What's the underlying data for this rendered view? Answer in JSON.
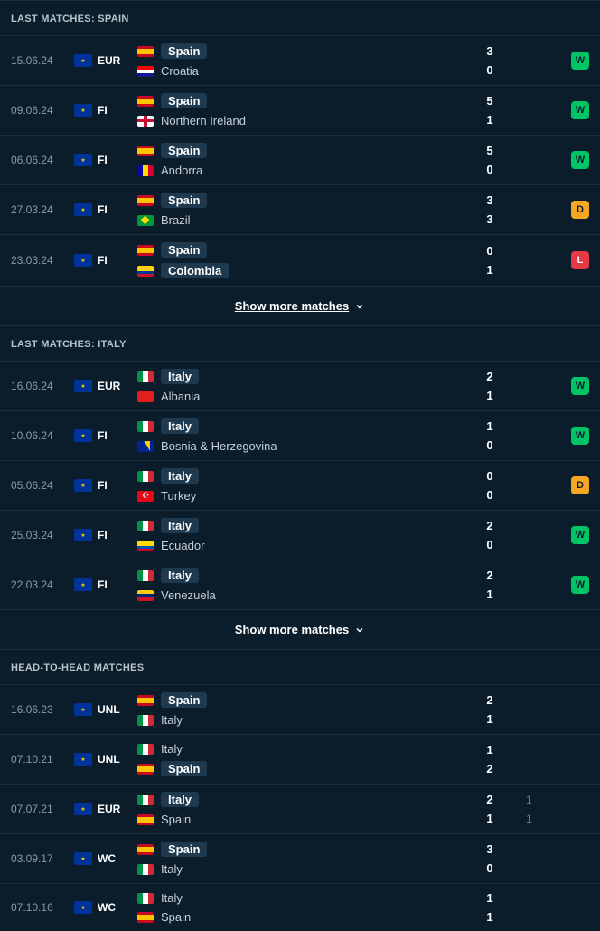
{
  "sections": [
    {
      "title": "LAST MATCHES: SPAIN",
      "show_more": "Show more matches",
      "matches": [
        {
          "date": "15.06.24",
          "comp": "EUR",
          "team1": {
            "name": "Spain",
            "flag": "spain",
            "hl": true
          },
          "team2": {
            "name": "Croatia",
            "flag": "croatia",
            "hl": false
          },
          "s1": "3",
          "s2": "0",
          "sub1": "",
          "sub2": "",
          "result": "W"
        },
        {
          "date": "09.06.24",
          "comp": "FI",
          "team1": {
            "name": "Spain",
            "flag": "spain",
            "hl": true
          },
          "team2": {
            "name": "Northern Ireland",
            "flag": "nireland",
            "hl": false
          },
          "s1": "5",
          "s2": "1",
          "sub1": "",
          "sub2": "",
          "result": "W"
        },
        {
          "date": "06.06.24",
          "comp": "FI",
          "team1": {
            "name": "Spain",
            "flag": "spain",
            "hl": true
          },
          "team2": {
            "name": "Andorra",
            "flag": "andorra",
            "hl": false
          },
          "s1": "5",
          "s2": "0",
          "sub1": "",
          "sub2": "",
          "result": "W"
        },
        {
          "date": "27.03.24",
          "comp": "FI",
          "team1": {
            "name": "Spain",
            "flag": "spain",
            "hl": true
          },
          "team2": {
            "name": "Brazil",
            "flag": "brazil",
            "hl": false
          },
          "s1": "3",
          "s2": "3",
          "sub1": "",
          "sub2": "",
          "result": "D"
        },
        {
          "date": "23.03.24",
          "comp": "FI",
          "team1": {
            "name": "Spain",
            "flag": "spain",
            "hl": true
          },
          "team2": {
            "name": "Colombia",
            "flag": "colombia",
            "hl": true
          },
          "s1": "0",
          "s2": "1",
          "sub1": "",
          "sub2": "",
          "result": "L"
        }
      ]
    },
    {
      "title": "LAST MATCHES: ITALY",
      "show_more": "Show more matches",
      "matches": [
        {
          "date": "16.06.24",
          "comp": "EUR",
          "team1": {
            "name": "Italy",
            "flag": "italy",
            "hl": true
          },
          "team2": {
            "name": "Albania",
            "flag": "albania",
            "hl": false
          },
          "s1": "2",
          "s2": "1",
          "sub1": "",
          "sub2": "",
          "result": "W"
        },
        {
          "date": "10.06.24",
          "comp": "FI",
          "team1": {
            "name": "Italy",
            "flag": "italy",
            "hl": true
          },
          "team2": {
            "name": "Bosnia & Herzegovina",
            "flag": "bosnia",
            "hl": false
          },
          "s1": "1",
          "s2": "0",
          "sub1": "",
          "sub2": "",
          "result": "W"
        },
        {
          "date": "05.06.24",
          "comp": "FI",
          "team1": {
            "name": "Italy",
            "flag": "italy",
            "hl": true
          },
          "team2": {
            "name": "Turkey",
            "flag": "turkey",
            "hl": false
          },
          "s1": "0",
          "s2": "0",
          "sub1": "",
          "sub2": "",
          "result": "D"
        },
        {
          "date": "25.03.24",
          "comp": "FI",
          "team1": {
            "name": "Italy",
            "flag": "italy",
            "hl": true
          },
          "team2": {
            "name": "Ecuador",
            "flag": "ecuador",
            "hl": false
          },
          "s1": "2",
          "s2": "0",
          "sub1": "",
          "sub2": "",
          "result": "W"
        },
        {
          "date": "22.03.24",
          "comp": "FI",
          "team1": {
            "name": "Italy",
            "flag": "italy",
            "hl": true
          },
          "team2": {
            "name": "Venezuela",
            "flag": "venezuela",
            "hl": false
          },
          "s1": "2",
          "s2": "1",
          "sub1": "",
          "sub2": "",
          "result": "W"
        }
      ]
    },
    {
      "title": "HEAD-TO-HEAD MATCHES",
      "show_more": "",
      "matches": [
        {
          "date": "16.06.23",
          "comp": "UNL",
          "team1": {
            "name": "Spain",
            "flag": "spain",
            "hl": true
          },
          "team2": {
            "name": "Italy",
            "flag": "italy",
            "hl": false
          },
          "s1": "2",
          "s2": "1",
          "sub1": "",
          "sub2": "",
          "result": ""
        },
        {
          "date": "07.10.21",
          "comp": "UNL",
          "team1": {
            "name": "Italy",
            "flag": "italy",
            "hl": false
          },
          "team2": {
            "name": "Spain",
            "flag": "spain",
            "hl": true
          },
          "s1": "1",
          "s2": "2",
          "sub1": "",
          "sub2": "",
          "result": ""
        },
        {
          "date": "07.07.21",
          "comp": "EUR",
          "team1": {
            "name": "Italy",
            "flag": "italy",
            "hl": true
          },
          "team2": {
            "name": "Spain",
            "flag": "spain",
            "hl": false
          },
          "s1": "2",
          "s2": "1",
          "sub1": "1",
          "sub2": "1",
          "result": ""
        },
        {
          "date": "03.09.17",
          "comp": "WC",
          "team1": {
            "name": "Spain",
            "flag": "spain",
            "hl": true
          },
          "team2": {
            "name": "Italy",
            "flag": "italy",
            "hl": false
          },
          "s1": "3",
          "s2": "0",
          "sub1": "",
          "sub2": "",
          "result": ""
        },
        {
          "date": "07.10.16",
          "comp": "WC",
          "team1": {
            "name": "Italy",
            "flag": "italy",
            "hl": false
          },
          "team2": {
            "name": "Spain",
            "flag": "spain",
            "hl": false
          },
          "s1": "1",
          "s2": "1",
          "sub1": "",
          "sub2": "",
          "result": ""
        }
      ]
    }
  ],
  "colors": {
    "background": "#0b1d2a",
    "border": "#1a3040",
    "text_muted": "#8a9ba8",
    "highlight_bg": "#1f3a4f",
    "win": "#00c566",
    "draw": "#f5a623",
    "loss": "#e63946"
  }
}
